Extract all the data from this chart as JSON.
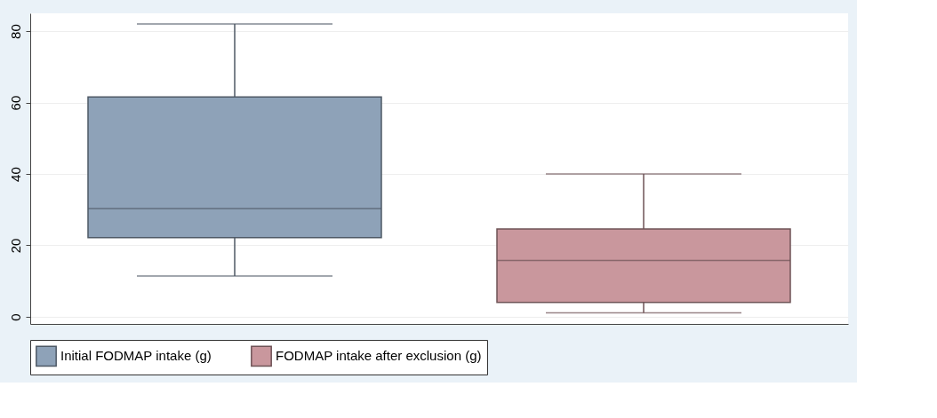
{
  "chart_data": {
    "type": "box",
    "categories": [
      null,
      null
    ],
    "series": [
      {
        "name": "Initial FODMAP intake (g)",
        "color": "#8ea2b8",
        "boxes": [
          {
            "low": 11.4,
            "q1": 22.2,
            "median": 30.3,
            "q3": 61.6,
            "high": 82.0
          },
          null
        ]
      },
      {
        "name": "FODMAP intake after exclusion (g)",
        "color": "#c9979d",
        "boxes": [
          null,
          {
            "low": 1.1,
            "q1": 4.0,
            "median": 15.8,
            "q3": 24.6,
            "high": 40.0
          }
        ]
      }
    ],
    "ylim": [
      -2,
      85
    ],
    "yticks": [
      0,
      20,
      40,
      60,
      80
    ],
    "grid": "y",
    "legend": "bottom",
    "tick_labels": "y"
  }
}
